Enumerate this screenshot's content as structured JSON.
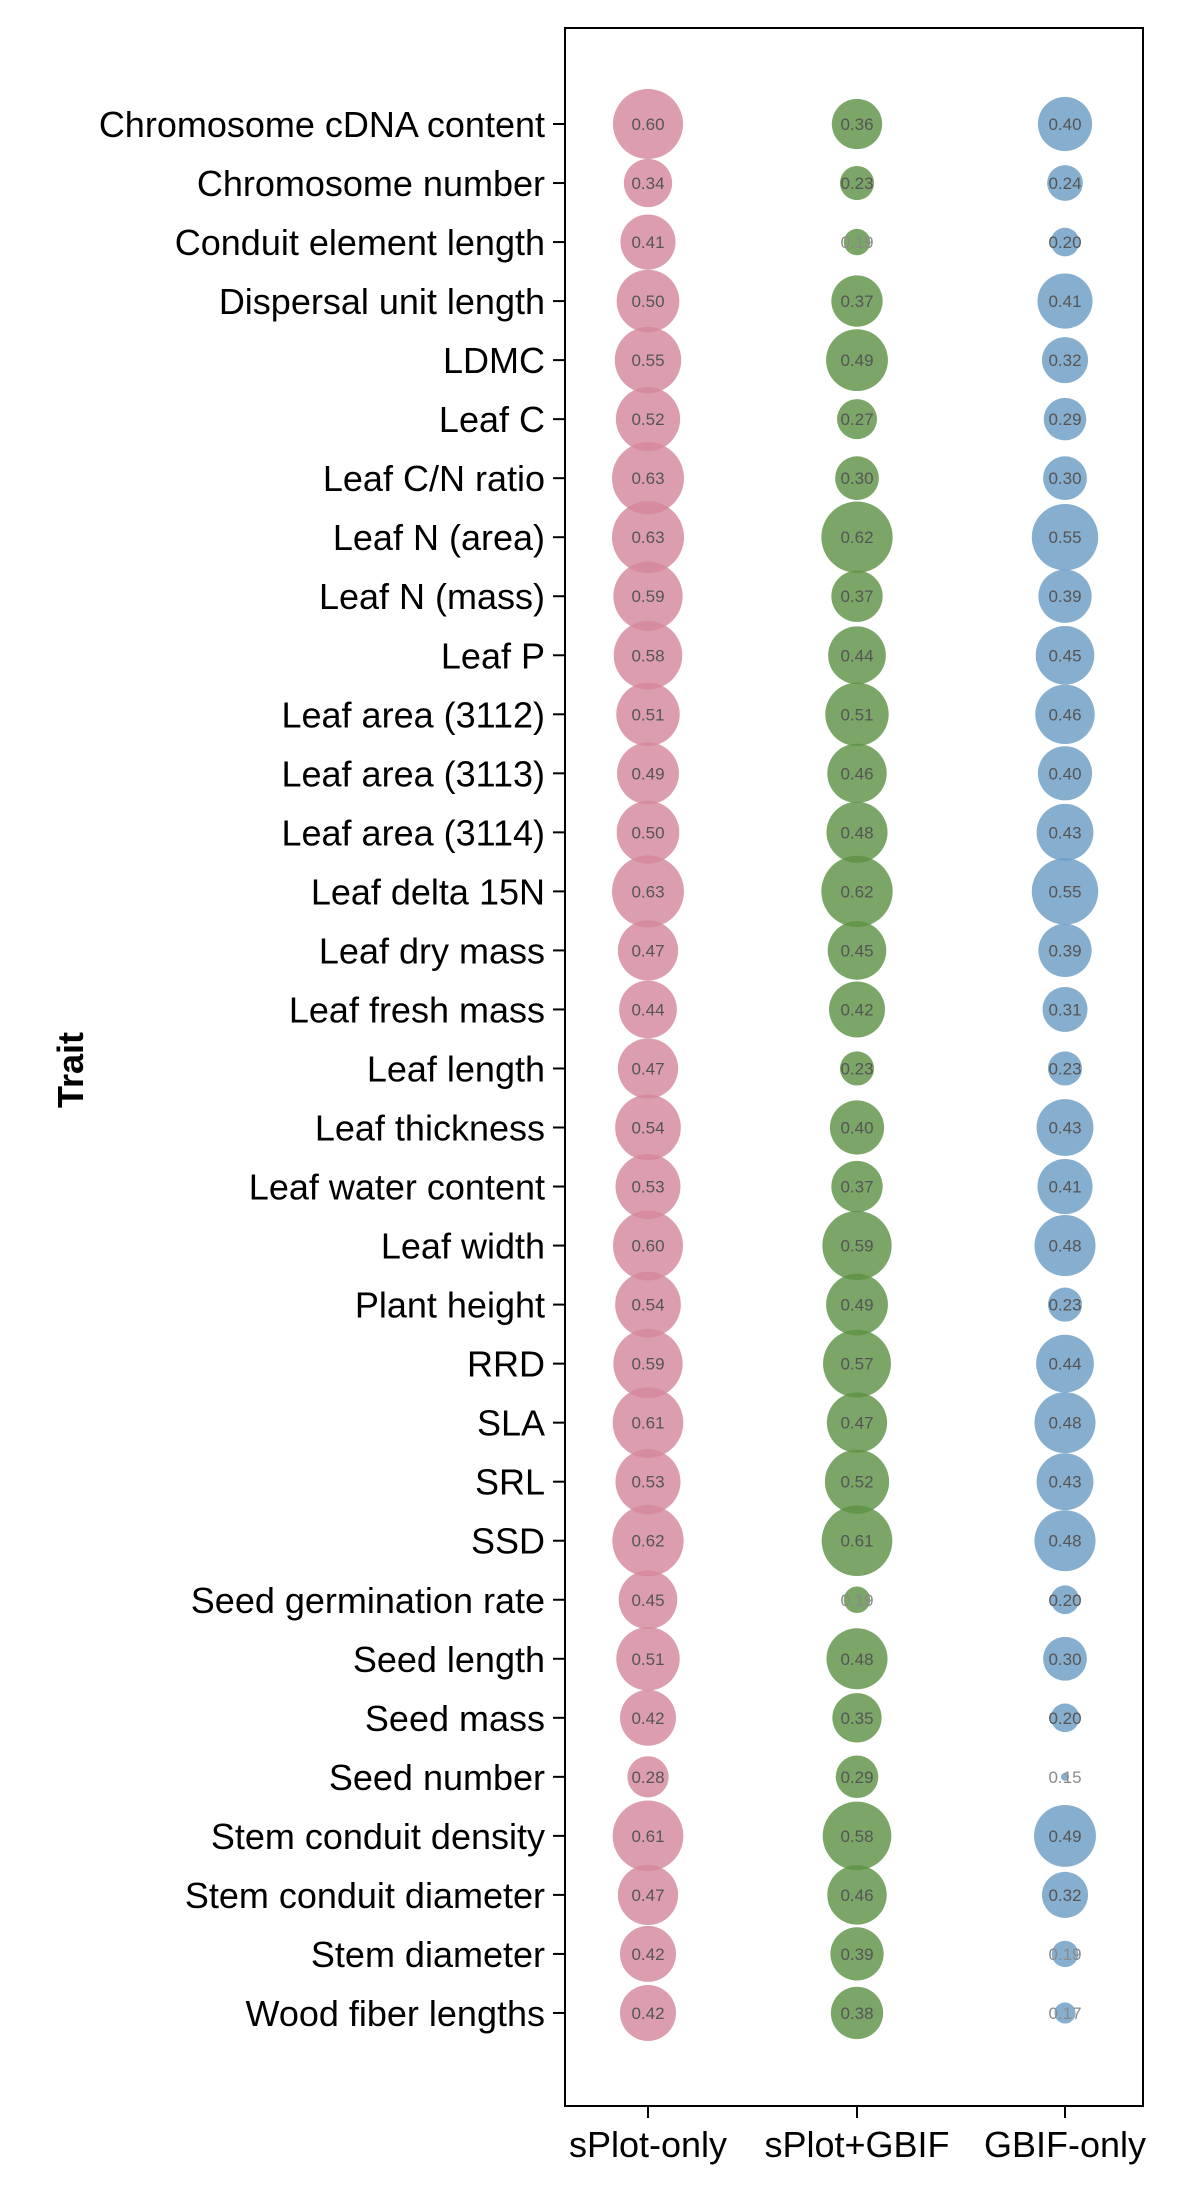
{
  "chart_data": {
    "type": "scatter",
    "subtype": "bubble-matrix",
    "title": "",
    "xlabel": "",
    "ylabel": "Trait",
    "categories": [
      "sPlot-only",
      "sPlot+GBIF",
      "GBIF-only"
    ],
    "traits": [
      "Chromosome cDNA content",
      "Chromosome number",
      "Conduit element length",
      "Dispersal unit length",
      "LDMC",
      "Leaf C",
      "Leaf C/N ratio",
      "Leaf N (area)",
      "Leaf N (mass)",
      "Leaf P",
      "Leaf area (3112)",
      "Leaf area (3113)",
      "Leaf area (3114)",
      "Leaf delta 15N",
      "Leaf dry mass",
      "Leaf fresh mass",
      "Leaf length",
      "Leaf thickness",
      "Leaf water content",
      "Leaf width",
      "Plant height",
      "RRD",
      "SLA",
      "SRL",
      "SSD",
      "Seed germination rate",
      "Seed length",
      "Seed mass",
      "Seed number",
      "Stem conduit density",
      "Stem conduit diameter",
      "Stem diameter",
      "Wood fiber lengths"
    ],
    "series": [
      {
        "color": "#d4889c",
        "values": [
          0.6,
          0.34,
          0.41,
          0.5,
          0.55,
          0.52,
          0.63,
          0.63,
          0.59,
          0.58,
          0.51,
          0.49,
          0.5,
          0.63,
          0.47,
          0.44,
          0.47,
          0.54,
          0.53,
          0.6,
          0.54,
          0.59,
          0.61,
          0.53,
          0.62,
          0.45,
          0.51,
          0.42,
          0.28,
          0.61,
          0.47,
          0.42,
          0.42
        ]
      },
      {
        "color": "#5e9246",
        "values": [
          0.36,
          0.23,
          0.19,
          0.37,
          0.49,
          0.27,
          0.3,
          0.62,
          0.37,
          0.44,
          0.51,
          0.46,
          0.48,
          0.62,
          0.45,
          0.42,
          0.23,
          0.4,
          0.37,
          0.59,
          0.49,
          0.57,
          0.47,
          0.52,
          0.61,
          0.19,
          0.48,
          0.35,
          0.29,
          0.58,
          0.46,
          0.39,
          0.38
        ]
      },
      {
        "color": "#6b9cc4",
        "values": [
          0.4,
          0.24,
          0.2,
          0.41,
          0.32,
          0.29,
          0.3,
          0.55,
          0.39,
          0.45,
          0.46,
          0.4,
          0.43,
          0.55,
          0.39,
          0.31,
          0.23,
          0.43,
          0.41,
          0.48,
          0.23,
          0.44,
          0.48,
          0.43,
          0.48,
          0.2,
          0.3,
          0.2,
          0.15,
          0.49,
          0.32,
          0.19,
          0.17
        ]
      }
    ],
    "grid": false,
    "legend": "none"
  }
}
